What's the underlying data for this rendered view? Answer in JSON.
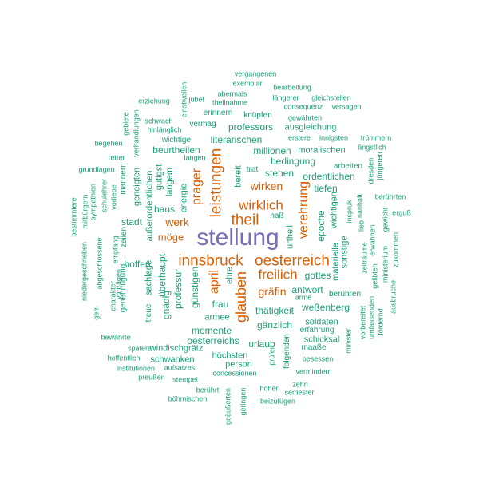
{
  "palette": {
    "green": "#1b9e77",
    "orange": "#d95f02",
    "purple": "#7570b3"
  },
  "words": [
    "stellung",
    "innsbruck",
    "oesterreich",
    "theil",
    "leistungen",
    "wirklich",
    "freilich",
    "glauben",
    "prager",
    "april",
    "verehrung",
    "werk",
    "wirken",
    "gräfin",
    "möge",
    "thätigkeit",
    "weßenberg",
    "millionen",
    "professors",
    "literarischen",
    "beurtheilen",
    "stehen",
    "ordentlichen",
    "bedingung",
    "tiefen",
    "stadt",
    "haus",
    "hoffen",
    "frau",
    "momente",
    "oesterreichs",
    "urlaub",
    "gänzlich",
    "antwort",
    "gottes",
    "soldaten",
    "schicksal",
    "armee",
    "windischgrätz",
    "schwanken",
    "höchsten",
    "person",
    "vergangenen",
    "exemplar",
    "bearbeitung",
    "abermals",
    "theilnahme",
    "längerer",
    "gleichstellen",
    "consequenz",
    "versagen",
    "erinnern",
    "knüpfen",
    "gewährten",
    "vermag",
    "ausgleichung",
    "erziehung",
    "jubel",
    "einstweilen",
    "schwach",
    "hinlänglich",
    "wichtige",
    "erstere",
    "innigsten",
    "moralischen",
    "trümmern",
    "ängstlich",
    "begehen",
    "retter",
    "grundlagen",
    "arbeiten",
    "dresden",
    "jüngeren",
    "langen",
    "trat",
    "bereit",
    "gütigst",
    "langem",
    "energie",
    "mitbürgern",
    "sympathien",
    "schulehrer",
    "mannern",
    "verhandlungen",
    "gebiete",
    "geneigten",
    "außerordentlichen",
    "vorliebe",
    "bestimmtere",
    "niedergeschrieben",
    "abgeschlossene",
    "zeilen",
    "empfang",
    "charakter",
    "genehmigung",
    "vorträgen",
    "gem",
    "sachlage",
    "treue",
    "gnädig",
    "überhaupt",
    "professur",
    "günstigen",
    "ehre",
    "berührten",
    "erguß",
    "gewicht",
    "nanhaft",
    "lieb",
    "inspruk",
    "wichtigen",
    "epoche",
    "haß",
    "urtheil",
    "sonstige",
    "materielle",
    "zeiträume",
    "erwähnen",
    "ministerium",
    "zukommen",
    "ausbruche",
    "gelibten",
    "berühren",
    "vorbereitet",
    "umfassenden",
    "fördernd",
    "minister",
    "erfahrung",
    "maaße",
    "besessen",
    "vermindern",
    "folgenden",
    "prüfen",
    "arme",
    "bewährte",
    "spätere",
    "hoffentlich",
    "institutionen",
    "aufsatzes",
    "preußen",
    "stempel",
    "concessionen",
    "zehn",
    "semester",
    "höher",
    "böhmischen",
    "berührt",
    "geäußerten",
    "geringen",
    "beizufügen"
  ]
}
